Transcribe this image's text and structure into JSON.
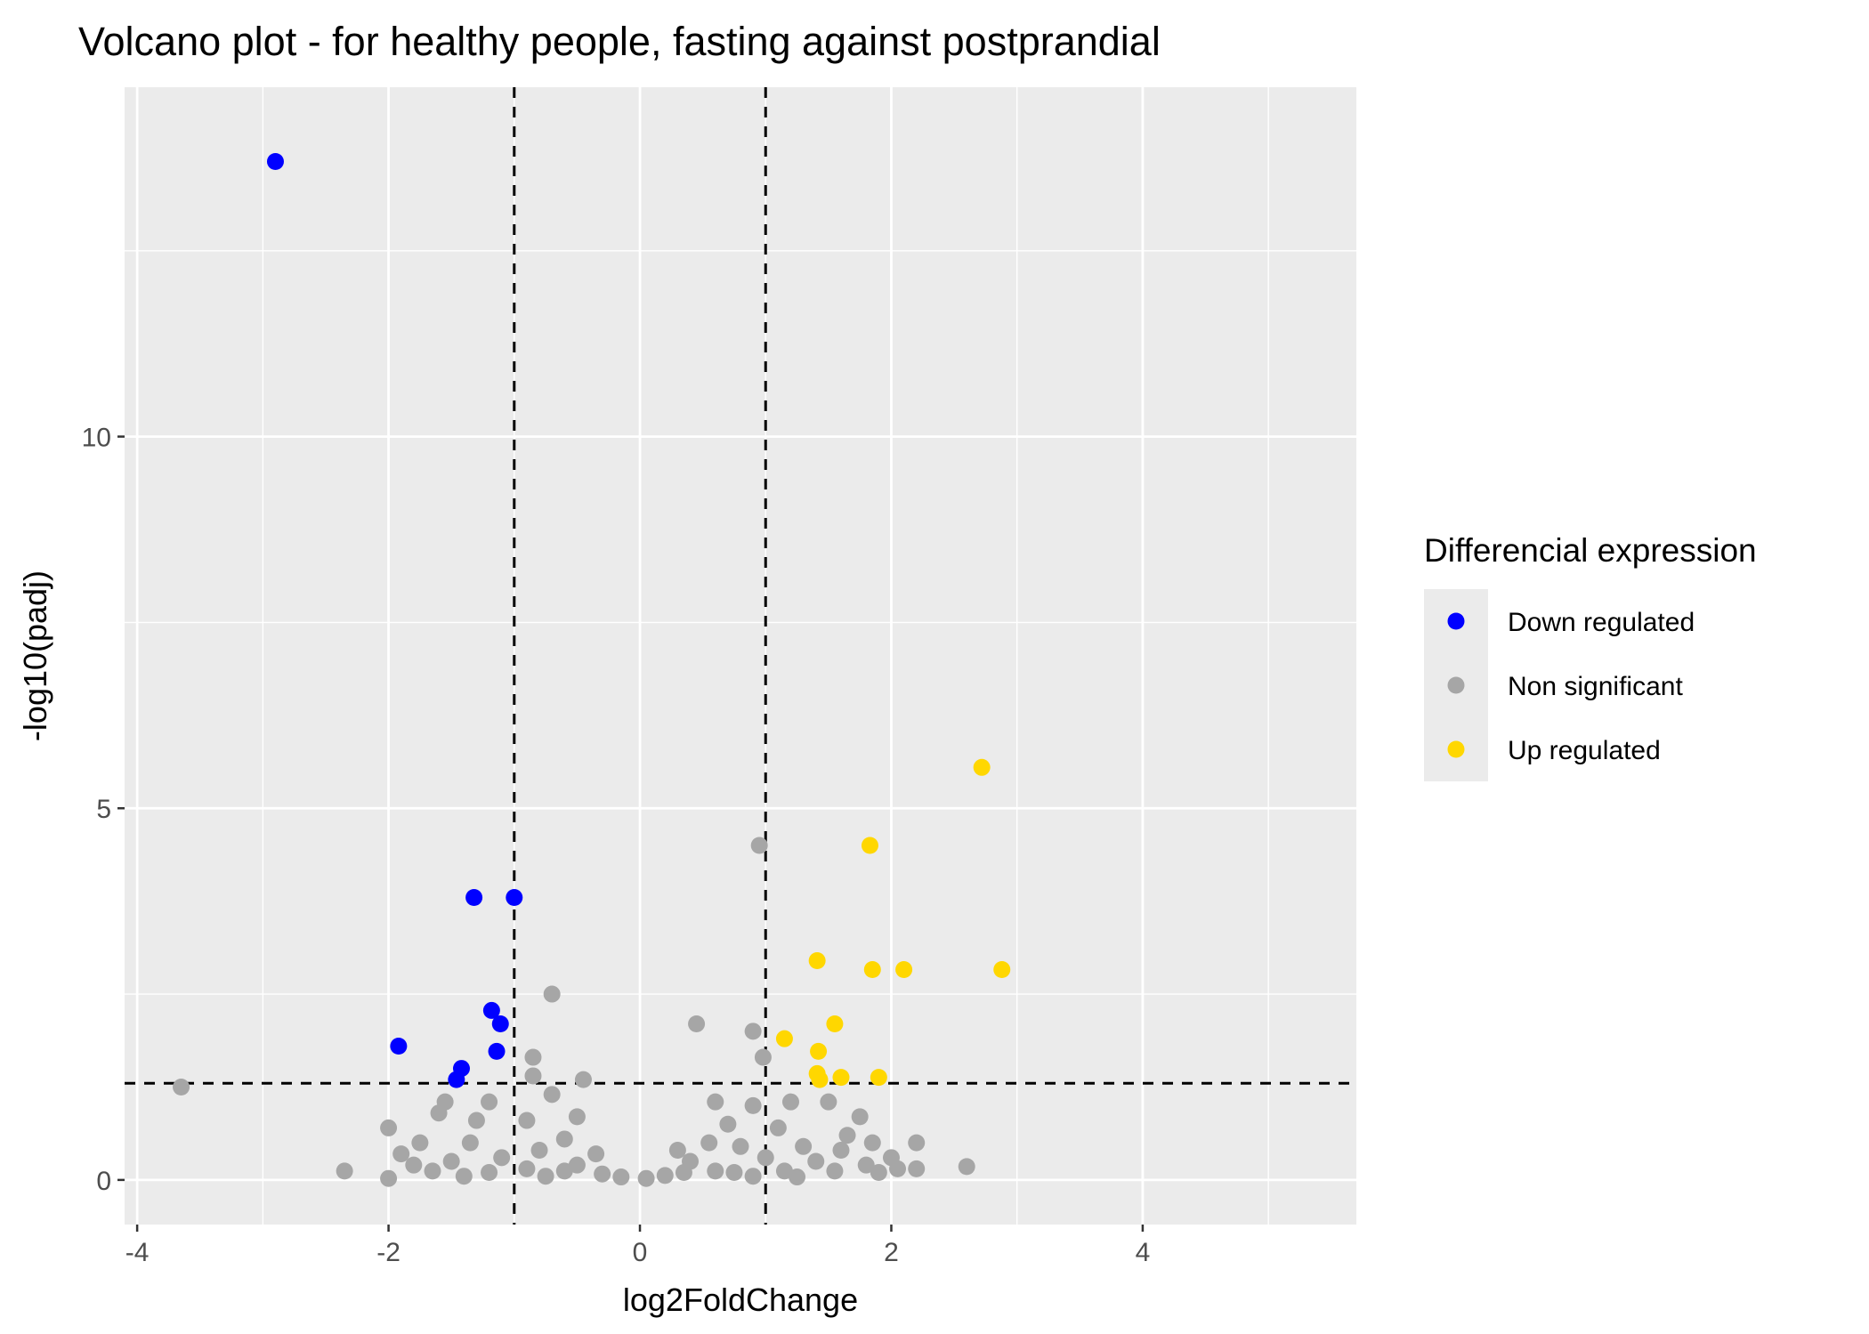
{
  "chart_data": {
    "type": "scatter",
    "title": "Volcano plot - for healthy people, fasting against postprandial",
    "xlabel": "log2FoldChange",
    "ylabel": "-log10(padj)",
    "xlim": [
      -4.1,
      5.7
    ],
    "ylim": [
      -0.6,
      14.7
    ],
    "x_ticks": [
      -4,
      -2,
      0,
      2,
      4
    ],
    "x_tick_labels": [
      "-4",
      "-2",
      "0",
      "2",
      "4"
    ],
    "y_ticks": [
      0,
      5,
      10
    ],
    "y_tick_labels": [
      "0",
      "5",
      "10"
    ],
    "grid": true,
    "thresholds": {
      "vlines": [
        -1,
        1
      ],
      "hline": 1.3
    },
    "legend": {
      "title": "Differencial expression",
      "placement": "right",
      "entries": [
        {
          "label": "Down regulated",
          "color": "#0000ff"
        },
        {
          "label": "Non significant",
          "color": "#a6a6a6"
        },
        {
          "label": "Up regulated",
          "color": "#ffd700"
        }
      ]
    },
    "series": [
      {
        "name": "Down regulated",
        "color": "#0000ff",
        "points": [
          [
            -2.9,
            13.7
          ],
          [
            -1.32,
            3.8
          ],
          [
            -1.0,
            3.8
          ],
          [
            -1.18,
            2.28
          ],
          [
            -1.11,
            2.1
          ],
          [
            -1.92,
            1.8
          ],
          [
            -1.14,
            1.73
          ],
          [
            -1.42,
            1.5
          ],
          [
            -1.46,
            1.35
          ]
        ]
      },
      {
        "name": "Non significant",
        "color": "#a6a6a6",
        "points": [
          [
            0.95,
            4.5
          ],
          [
            -0.7,
            2.5
          ],
          [
            0.45,
            2.1
          ],
          [
            0.9,
            2.0
          ],
          [
            0.98,
            1.65
          ],
          [
            -0.85,
            1.65
          ],
          [
            -0.85,
            1.4
          ],
          [
            -0.45,
            1.35
          ],
          [
            -3.65,
            1.25
          ],
          [
            -0.7,
            1.15
          ],
          [
            -1.2,
            1.05
          ],
          [
            -1.55,
            1.05
          ],
          [
            0.6,
            1.05
          ],
          [
            0.9,
            1.0
          ],
          [
            1.2,
            1.05
          ],
          [
            -0.5,
            0.85
          ],
          [
            -0.9,
            0.8
          ],
          [
            1.5,
            1.05
          ],
          [
            1.75,
            0.85
          ],
          [
            -1.3,
            0.8
          ],
          [
            -2.0,
            0.7
          ],
          [
            -1.6,
            0.9
          ],
          [
            0.7,
            0.75
          ],
          [
            1.1,
            0.7
          ],
          [
            1.65,
            0.6
          ],
          [
            -0.6,
            0.55
          ],
          [
            -1.75,
            0.5
          ],
          [
            -1.35,
            0.5
          ],
          [
            1.85,
            0.5
          ],
          [
            2.2,
            0.5
          ],
          [
            -1.9,
            0.35
          ],
          [
            -0.8,
            0.4
          ],
          [
            -0.35,
            0.35
          ],
          [
            0.3,
            0.4
          ],
          [
            0.55,
            0.5
          ],
          [
            0.8,
            0.45
          ],
          [
            1.3,
            0.45
          ],
          [
            1.6,
            0.4
          ],
          [
            2.0,
            0.3
          ],
          [
            -1.8,
            0.2
          ],
          [
            -1.5,
            0.25
          ],
          [
            -1.1,
            0.3
          ],
          [
            -0.5,
            0.2
          ],
          [
            0.4,
            0.25
          ],
          [
            1.0,
            0.3
          ],
          [
            1.4,
            0.25
          ],
          [
            1.8,
            0.2
          ],
          [
            2.05,
            0.15
          ],
          [
            2.2,
            0.15
          ],
          [
            2.6,
            0.18
          ],
          [
            -2.35,
            0.12
          ],
          [
            -2.0,
            0.02
          ],
          [
            -1.65,
            0.12
          ],
          [
            -1.2,
            0.1
          ],
          [
            -0.9,
            0.15
          ],
          [
            -0.6,
            0.12
          ],
          [
            -0.3,
            0.08
          ],
          [
            -0.15,
            0.04
          ],
          [
            0.05,
            0.02
          ],
          [
            0.2,
            0.06
          ],
          [
            0.35,
            0.1
          ],
          [
            0.6,
            0.12
          ],
          [
            0.75,
            0.1
          ],
          [
            1.15,
            0.12
          ],
          [
            1.55,
            0.12
          ],
          [
            1.9,
            0.1
          ],
          [
            -1.4,
            0.05
          ],
          [
            -0.75,
            0.05
          ],
          [
            0.9,
            0.05
          ],
          [
            1.25,
            0.04
          ]
        ]
      },
      {
        "name": "Up regulated",
        "color": "#ffd700",
        "points": [
          [
            2.72,
            5.55
          ],
          [
            1.83,
            4.5
          ],
          [
            1.41,
            2.95
          ],
          [
            1.85,
            2.83
          ],
          [
            2.1,
            2.83
          ],
          [
            2.88,
            2.83
          ],
          [
            1.55,
            2.1
          ],
          [
            1.15,
            1.9
          ],
          [
            1.42,
            1.73
          ],
          [
            1.41,
            1.43
          ],
          [
            1.43,
            1.35
          ],
          [
            1.6,
            1.38
          ],
          [
            1.9,
            1.38
          ]
        ]
      }
    ]
  }
}
